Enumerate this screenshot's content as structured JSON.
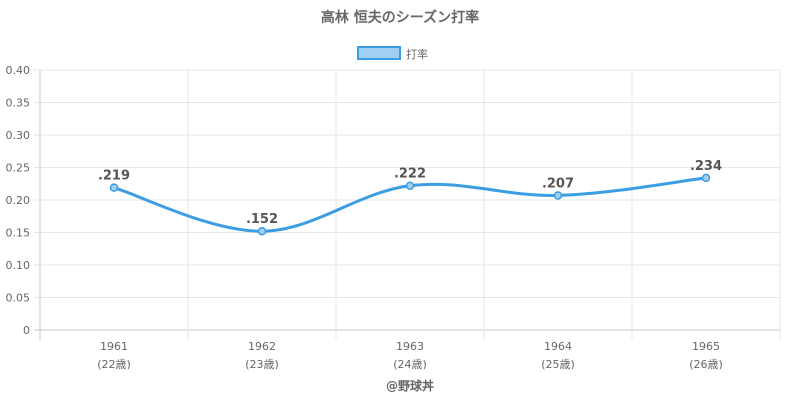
{
  "chart_data": {
    "type": "line",
    "title": "高林 恒夫のシーズン打率",
    "categories": [
      "1961",
      "1962",
      "1963",
      "1964",
      "1965"
    ],
    "sublabels": [
      "(22歳)",
      "(23歳)",
      "(24歳)",
      "(25歳)",
      "(26歳)"
    ],
    "series": [
      {
        "name": "打率",
        "values": [
          0.219,
          0.152,
          0.222,
          0.207,
          0.234
        ],
        "labels": [
          ".219",
          ".152",
          ".222",
          ".207",
          ".234"
        ],
        "color": "#3d9de3",
        "fill": "#9fd0f3"
      }
    ],
    "yticks": [
      "0",
      "0.05",
      "0.10",
      "0.15",
      "0.20",
      "0.25",
      "0.30",
      "0.35",
      "0.40"
    ],
    "ylim": [
      0,
      0.4
    ],
    "grid": true,
    "legend_position": "top",
    "credit": "@野球丼"
  }
}
